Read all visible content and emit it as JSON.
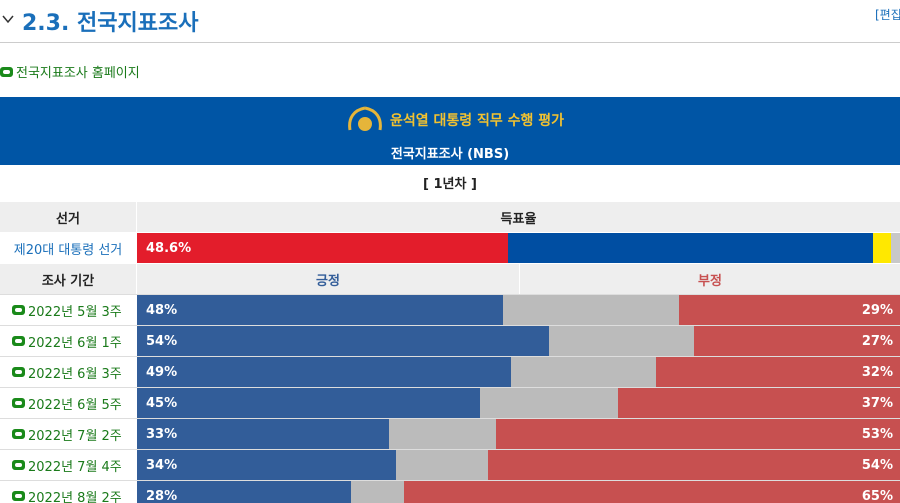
{
  "section": {
    "number": "2.3.",
    "title": "전국지표조사",
    "edit": "[편집"
  },
  "link": "전국지표조사 홈페이지",
  "table": {
    "title": "윤석열 대통령 직무 수행 평가",
    "subtitle": "전국지표조사 (NBS)",
    "period": "[ 1년차 ]",
    "headers": [
      "선거",
      "득표율"
    ],
    "election": {
      "label": "제20대 대통령 선거",
      "segments": [
        {
          "value": 48.6,
          "label": "48.6%",
          "color": "#e31d2b"
        },
        {
          "value": 47.8,
          "color": "#004ea2"
        },
        {
          "value": 2.4,
          "color": "#ffe800"
        },
        {
          "value": 1.2,
          "color": "#c8c8c8"
        }
      ]
    },
    "poll_headers": [
      "조사 기간",
      "긍정",
      "부정"
    ],
    "positive_color": "#325d99",
    "neutral_color": "#bbbbbb",
    "negative_color": "#c75050",
    "polls": [
      {
        "period": "2022년 5월 3주",
        "positive": 48,
        "positive_label": "48%",
        "negative": 29,
        "negative_label": "29%"
      },
      {
        "period": "2022년 6월 1주",
        "positive": 54,
        "positive_label": "54%",
        "negative": 27,
        "negative_label": "27%"
      },
      {
        "period": "2022년 6월 3주",
        "positive": 49,
        "positive_label": "49%",
        "negative": 32,
        "negative_label": "32%"
      },
      {
        "period": "2022년 6월 5주",
        "positive": 45,
        "positive_label": "45%",
        "negative": 37,
        "negative_label": "37%"
      },
      {
        "period": "2022년 7월 2주",
        "positive": 33,
        "positive_label": "33%",
        "negative": 53,
        "negative_label": "53%"
      },
      {
        "period": "2022년 7월 4주",
        "positive": 34,
        "positive_label": "34%",
        "negative": 54,
        "negative_label": "54%"
      },
      {
        "period": "2022년 8월 2주",
        "positive": 28,
        "positive_label": "28%",
        "negative": 65,
        "negative_label": "65%"
      }
    ]
  }
}
